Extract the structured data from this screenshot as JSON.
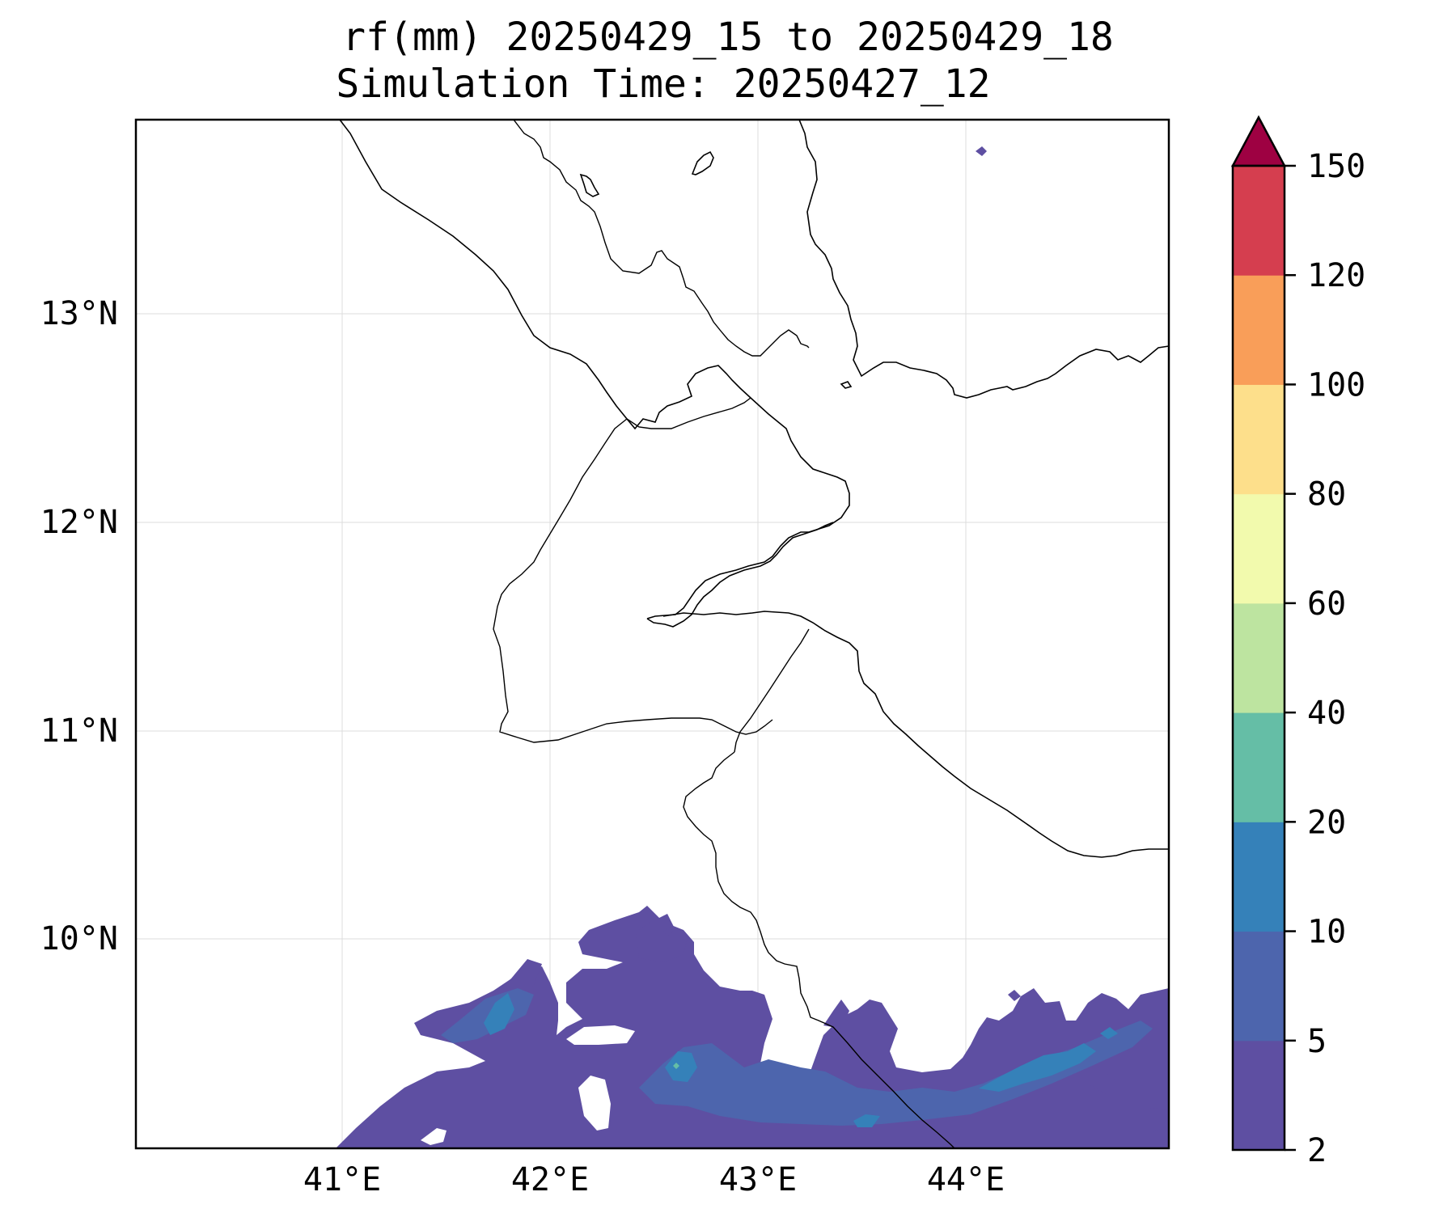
{
  "map": {
    "title_line1": "rf(mm) 20250429_15 to 20250429_18",
    "title_line2": "Simulation Time: 20250427_12",
    "lon_ticks": [
      "41°E",
      "42°E",
      "43°E",
      "44°E"
    ],
    "lat_ticks": [
      "13°N",
      "12°N",
      "11°N",
      "10°N"
    ],
    "extent": {
      "lon_min": 40.03,
      "lon_max": 44.97,
      "lat_min": 9.03,
      "lat_max": 13.97
    },
    "gridlines": true
  },
  "colorbar": {
    "levels": [
      "2",
      "5",
      "10",
      "20",
      "40",
      "60",
      "80",
      "100",
      "120",
      "150"
    ],
    "colors": [
      "#5e4fa2",
      "#4d65ad",
      "#3581b9",
      "#65bea6",
      "#bde4a0",
      "#f2faad",
      "#fddf8b",
      "#f99e59",
      "#d53e4f"
    ],
    "extend_color": "#9e0142",
    "extend": "max",
    "units": "mm"
  }
}
